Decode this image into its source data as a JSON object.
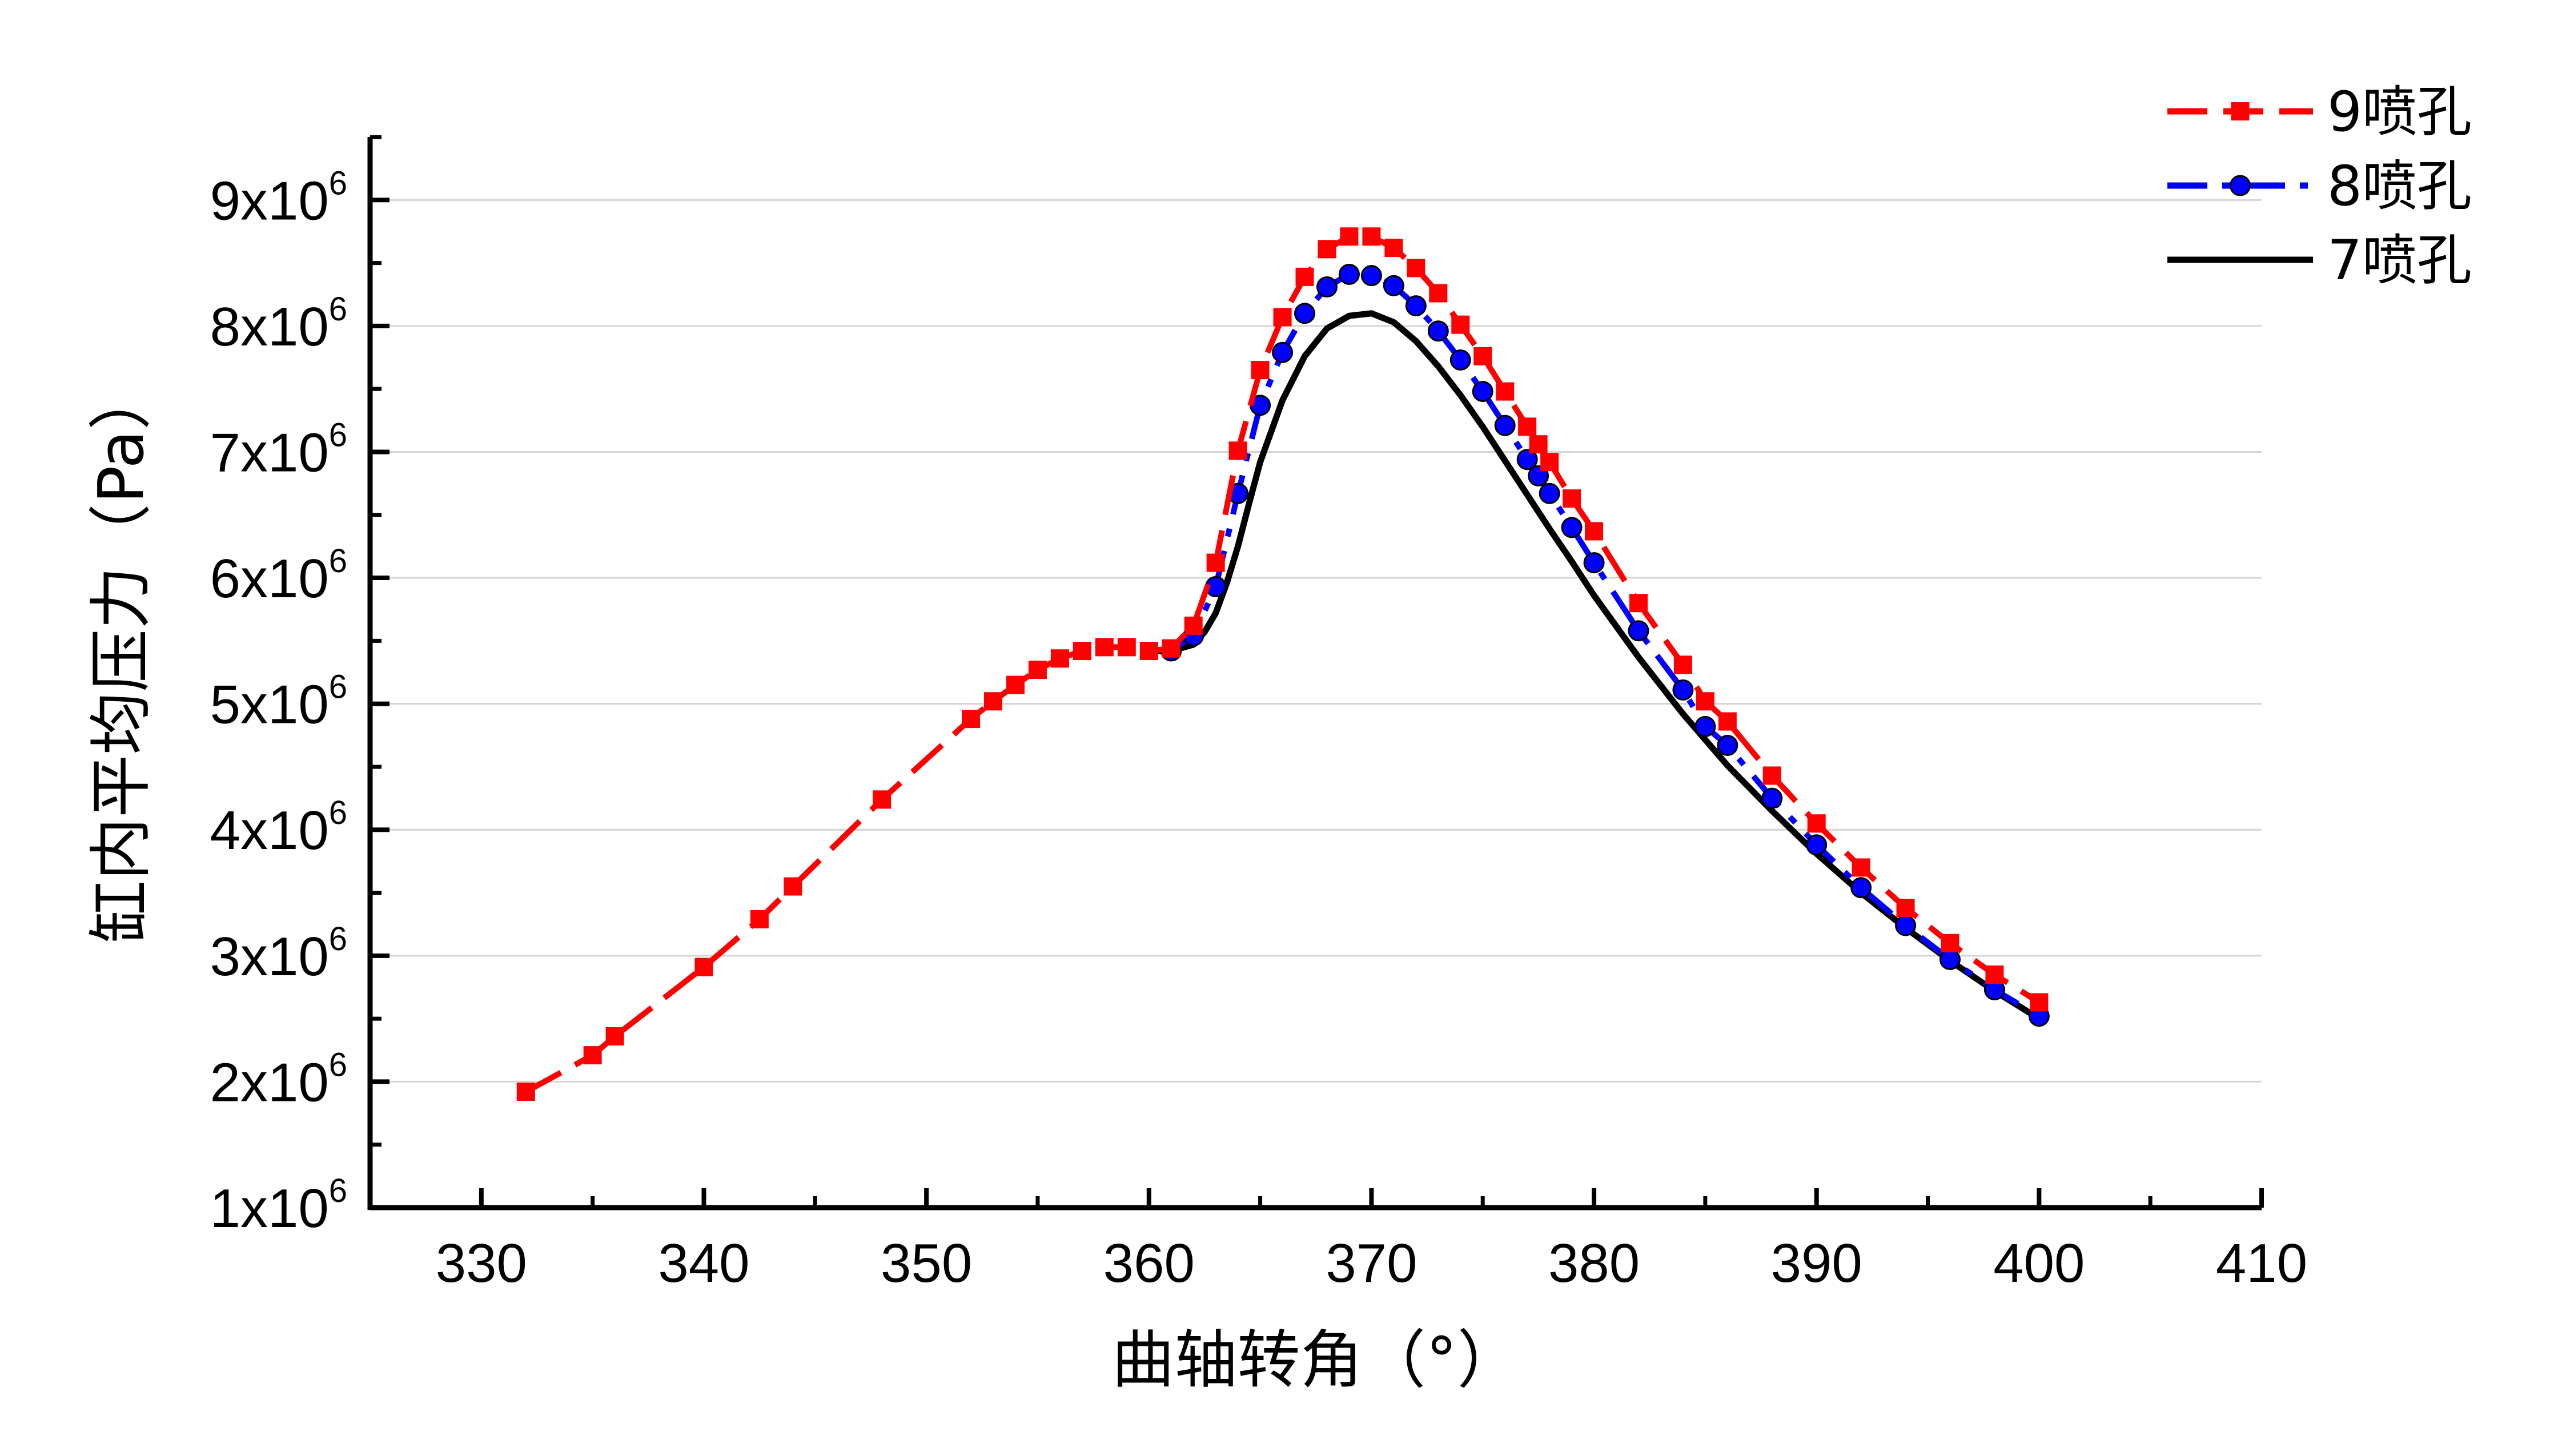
{
  "chart_data": {
    "type": "line",
    "xlabel": "曲轴转角（°）",
    "ylabel": "缸内平均压力（Pa）",
    "xlim": [
      325,
      410
    ],
    "ylim": [
      1000000,
      9500000
    ],
    "x_ticks": [
      330,
      340,
      350,
      360,
      370,
      380,
      390,
      400,
      410
    ],
    "y_ticks": [
      {
        "value": 1000000,
        "base": "1x10",
        "exp": "6"
      },
      {
        "value": 2000000,
        "base": "2x10",
        "exp": "6"
      },
      {
        "value": 3000000,
        "base": "3x10",
        "exp": "6"
      },
      {
        "value": 4000000,
        "base": "4x10",
        "exp": "6"
      },
      {
        "value": 5000000,
        "base": "5x10",
        "exp": "6"
      },
      {
        "value": 6000000,
        "base": "6x10",
        "exp": "6"
      },
      {
        "value": 7000000,
        "base": "7x10",
        "exp": "6"
      },
      {
        "value": 8000000,
        "base": "8x10",
        "exp": "6"
      },
      {
        "value": 9000000,
        "base": "9x10",
        "exp": "6"
      }
    ],
    "grid": "horizontal",
    "legend_position": "top-right",
    "series": [
      {
        "name": "9喷孔",
        "color": "#ff0000",
        "marker": "square",
        "line_style": "dashed",
        "x": [
          332,
          335,
          336,
          340,
          342.5,
          344,
          348,
          352,
          353,
          354,
          355,
          356,
          357,
          358,
          359,
          360,
          361,
          362,
          363,
          364,
          365,
          366,
          367,
          368,
          369,
          370,
          371,
          372,
          373,
          374,
          375,
          376,
          377,
          377.5,
          378,
          379,
          380,
          382,
          384,
          385,
          386,
          388,
          390,
          392,
          394,
          396,
          398,
          400
        ],
        "y": [
          1920000,
          2210000,
          2360000,
          2910000,
          3290000,
          3550000,
          4240000,
          4880000,
          5020000,
          5150000,
          5270000,
          5360000,
          5420000,
          5450000,
          5450000,
          5420000,
          5440000,
          5620000,
          6120000,
          7010000,
          7650000,
          8070000,
          8390000,
          8610000,
          8710000,
          8710000,
          8620000,
          8460000,
          8260000,
          8010000,
          7760000,
          7480000,
          7200000,
          7060000,
          6920000,
          6630000,
          6370000,
          5800000,
          5310000,
          5020000,
          4860000,
          4430000,
          4050000,
          3700000,
          3380000,
          3100000,
          2850000,
          2630000
        ]
      },
      {
        "name": "8喷孔",
        "color": "#0000ff",
        "marker": "circle",
        "line_style": "dashdot",
        "x": [
          361,
          362,
          363,
          364,
          365,
          366,
          367,
          368,
          369,
          370,
          371,
          372,
          373,
          374,
          375,
          376,
          377,
          377.5,
          378,
          379,
          380,
          382,
          384,
          385,
          386,
          388,
          390,
          392,
          394,
          396,
          398,
          400
        ],
        "y": [
          5420000,
          5540000,
          5930000,
          6670000,
          7370000,
          7790000,
          8100000,
          8310000,
          8410000,
          8400000,
          8320000,
          8160000,
          7960000,
          7730000,
          7480000,
          7210000,
          6940000,
          6810000,
          6670000,
          6400000,
          6120000,
          5580000,
          5110000,
          4820000,
          4670000,
          4250000,
          3880000,
          3540000,
          3240000,
          2970000,
          2730000,
          2520000
        ]
      },
      {
        "name": "7喷孔",
        "color": "#000000",
        "marker": "none",
        "line_style": "solid",
        "x": [
          360,
          361,
          362,
          362.5,
          363,
          363.5,
          364,
          364.5,
          365,
          366,
          367,
          368,
          369,
          370,
          371,
          372,
          373,
          374,
          375,
          376,
          377,
          378,
          379,
          380,
          382,
          384,
          386,
          388,
          390,
          392,
          394,
          396,
          398,
          400
        ],
        "y": [
          5420000,
          5420000,
          5470000,
          5570000,
          5720000,
          5960000,
          6250000,
          6590000,
          6920000,
          7410000,
          7760000,
          7980000,
          8080000,
          8100000,
          8030000,
          7880000,
          7680000,
          7450000,
          7200000,
          6930000,
          6660000,
          6390000,
          6130000,
          5860000,
          5370000,
          4920000,
          4510000,
          4150000,
          3810000,
          3500000,
          3220000,
          2960000,
          2720000,
          2500000
        ]
      }
    ]
  }
}
